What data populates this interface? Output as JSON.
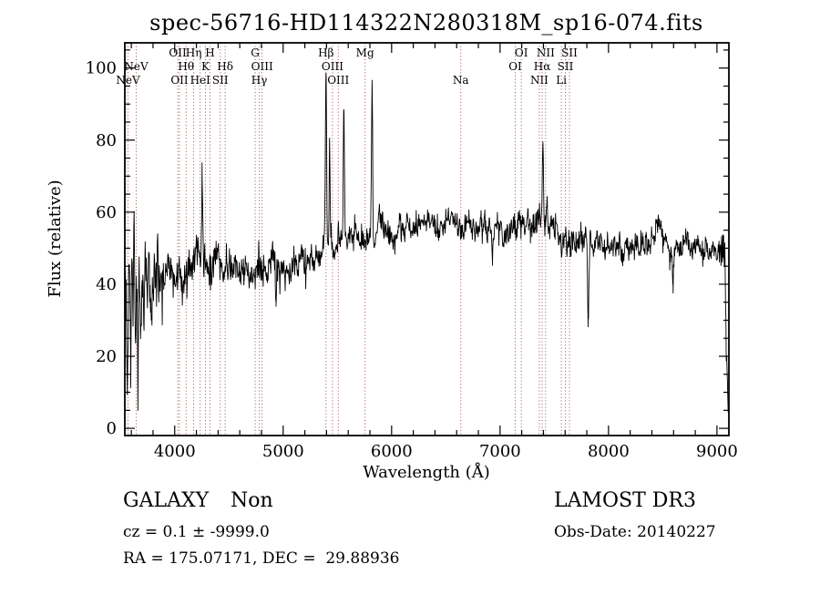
{
  "title": "spec-56716-HD114322N280318M_sp16-074.fits",
  "annotations": {
    "class_label": "GALAXY",
    "subclass_label": "Non",
    "survey": "LAMOST DR3",
    "cz": "cz = 0.1 ± -9999.0",
    "obs_date": "Obs-Date: 20140227",
    "ra_dec": "RA = 175.07171, DEC =  29.88936"
  },
  "chart_data": {
    "type": "line",
    "title": "spec-56716-HD114322N280318M_sp16-074.fits",
    "xlabel": "Wavelength (Å)",
    "ylabel": "Flux (relative)",
    "xlim": [
      3540,
      9110
    ],
    "ylim": [
      -2,
      107
    ],
    "x_ticks": [
      4000,
      5000,
      6000,
      7000,
      8000,
      9000
    ],
    "y_ticks": [
      0,
      20,
      40,
      60,
      80,
      100
    ],
    "x_minor_step": 200,
    "y_minor_step": 5,
    "grid": false,
    "line_color": "#000000",
    "marker_color": "#993939",
    "line_markers": [
      {
        "label": "NeV",
        "row": 3,
        "wavelength": 3570
      },
      {
        "label": "NeV",
        "row": 2,
        "wavelength": 3645
      },
      {
        "label": "OII",
        "row": 1,
        "wavelength": 4028
      },
      {
        "label": "OII",
        "row": 3,
        "wavelength": 4044
      },
      {
        "label": "Hθ",
        "row": 2,
        "wavelength": 4105
      },
      {
        "label": "Hη",
        "row": 1,
        "wavelength": 4175
      },
      {
        "label": "HeI",
        "row": 3,
        "wavelength": 4235
      },
      {
        "label": "K",
        "row": 2,
        "wavelength": 4283
      },
      {
        "label": "H",
        "row": 1,
        "wavelength": 4325
      },
      {
        "label": "SII",
        "row": 3,
        "wavelength": 4420
      },
      {
        "label": "Hδ",
        "row": 2,
        "wavelength": 4465
      },
      {
        "label": "G",
        "row": 1,
        "wavelength": 4742
      },
      {
        "label": "Hγ",
        "row": 3,
        "wavelength": 4780
      },
      {
        "label": "OIII",
        "row": 2,
        "wavelength": 4806
      },
      {
        "label": "Hβ",
        "row": 1,
        "wavelength": 5395
      },
      {
        "label": "OIII",
        "row": 2,
        "wavelength": 5455
      },
      {
        "label": "OIII",
        "row": 3,
        "wavelength": 5508
      },
      {
        "label": "Mg",
        "row": 1,
        "wavelength": 5755
      },
      {
        "label": "Na",
        "row": 3,
        "wavelength": 6638
      },
      {
        "label": "OI",
        "row": 2,
        "wavelength": 7140
      },
      {
        "label": "OI",
        "row": 1,
        "wavelength": 7196
      },
      {
        "label": "NII",
        "row": 3,
        "wavelength": 7362
      },
      {
        "label": "Hα",
        "row": 2,
        "wavelength": 7388
      },
      {
        "label": "NII",
        "row": 1,
        "wavelength": 7420
      },
      {
        "label": "Li",
        "row": 3,
        "wavelength": 7565
      },
      {
        "label": "SII",
        "row": 2,
        "wavelength": 7602
      },
      {
        "label": "SII",
        "row": 1,
        "wavelength": 7640
      }
    ],
    "continuum_points": [
      [
        3540,
        28
      ],
      [
        3552,
        45
      ],
      [
        3560,
        12
      ],
      [
        3572,
        40
      ],
      [
        3582,
        55
      ],
      [
        3594,
        15
      ],
      [
        3605,
        48
      ],
      [
        3615,
        28
      ],
      [
        3625,
        57
      ],
      [
        3636,
        20
      ],
      [
        3648,
        42
      ],
      [
        3660,
        14
      ],
      [
        3672,
        50
      ],
      [
        3686,
        34
      ],
      [
        3700,
        46
      ],
      [
        3715,
        30
      ],
      [
        3730,
        47
      ],
      [
        3748,
        36
      ],
      [
        3765,
        52
      ],
      [
        3780,
        32
      ],
      [
        3798,
        44
      ],
      [
        3818,
        37
      ],
      [
        3838,
        47
      ],
      [
        3858,
        39
      ],
      [
        3878,
        44
      ],
      [
        3905,
        42
      ],
      [
        3950,
        44
      ],
      [
        4000,
        41
      ],
      [
        4050,
        45
      ],
      [
        4100,
        43
      ],
      [
        4150,
        46
      ],
      [
        4200,
        47
      ],
      [
        4250,
        46
      ],
      [
        4300,
        48
      ],
      [
        4350,
        45
      ],
      [
        4400,
        47
      ],
      [
        4450,
        46
      ],
      [
        4500,
        47
      ],
      [
        4550,
        45
      ],
      [
        4600,
        44
      ],
      [
        4650,
        46
      ],
      [
        4700,
        44
      ],
      [
        4750,
        45
      ],
      [
        4800,
        43
      ],
      [
        4850,
        44
      ],
      [
        4900,
        46
      ],
      [
        4950,
        43
      ],
      [
        5000,
        44
      ],
      [
        5050,
        41
      ],
      [
        5100,
        44
      ],
      [
        5150,
        46
      ],
      [
        5200,
        47
      ],
      [
        5250,
        45
      ],
      [
        5300,
        47
      ],
      [
        5350,
        48
      ],
      [
        5400,
        50
      ],
      [
        5450,
        50
      ],
      [
        5500,
        51
      ],
      [
        5550,
        52
      ],
      [
        5600,
        52
      ],
      [
        5650,
        53
      ],
      [
        5700,
        52
      ],
      [
        5750,
        54
      ],
      [
        5800,
        54
      ],
      [
        5850,
        53
      ],
      [
        5900,
        55
      ],
      [
        5950,
        54
      ],
      [
        6000,
        54
      ],
      [
        6100,
        55
      ],
      [
        6200,
        56
      ],
      [
        6300,
        57
      ],
      [
        6400,
        58
      ],
      [
        6500,
        59
      ],
      [
        6550,
        58
      ],
      [
        6600,
        57
      ],
      [
        6700,
        56
      ],
      [
        6800,
        55
      ],
      [
        6900,
        56
      ],
      [
        7000,
        57
      ],
      [
        7100,
        55
      ],
      [
        7200,
        56
      ],
      [
        7300,
        55
      ],
      [
        7400,
        56
      ],
      [
        7500,
        55
      ],
      [
        7600,
        53
      ],
      [
        7700,
        52
      ],
      [
        7800,
        52
      ],
      [
        7900,
        51
      ],
      [
        8000,
        51
      ],
      [
        8100,
        50
      ],
      [
        8200,
        50
      ],
      [
        8300,
        50
      ],
      [
        8380,
        51
      ],
      [
        8450,
        58
      ],
      [
        8520,
        51
      ],
      [
        8600,
        49
      ],
      [
        8700,
        50
      ],
      [
        8800,
        49
      ],
      [
        8900,
        50
      ],
      [
        8980,
        49
      ],
      [
        9040,
        49
      ],
      [
        9070,
        46
      ],
      [
        9090,
        20
      ],
      [
        9105,
        6
      ]
    ],
    "noise_regions": [
      {
        "from": 3540,
        "to": 3905,
        "amp": 6.5
      },
      {
        "from": 3905,
        "to": 4450,
        "amp": 3.4
      },
      {
        "from": 4450,
        "to": 5300,
        "amp": 2.8
      },
      {
        "from": 5300,
        "to": 7600,
        "amp": 2.4
      },
      {
        "from": 7600,
        "to": 9020,
        "amp": 2.2
      },
      {
        "from": 9020,
        "to": 9110,
        "amp": 3.5
      }
    ],
    "emission_features": [
      {
        "wavelength": 4253,
        "peak": 70,
        "sigma": 5
      },
      {
        "wavelength": 5395,
        "peak": 94,
        "sigma": 5
      },
      {
        "wavelength": 5428,
        "peak": 76,
        "sigma": 4
      },
      {
        "wavelength": 5560,
        "peak": 89,
        "sigma": 5
      },
      {
        "wavelength": 5820,
        "peak": 95,
        "sigma": 5
      },
      {
        "wavelength": 7395,
        "peak": 75,
        "sigma": 6
      },
      {
        "wavelength": 7435,
        "peak": 63,
        "sigma": 5
      }
    ],
    "absorption_features": [
      {
        "wavelength": 4935,
        "depth": 10,
        "sigma": 5
      },
      {
        "wavelength": 6930,
        "depth": 9,
        "sigma": 6
      },
      {
        "wavelength": 7812,
        "depth": 24,
        "sigma": 6
      },
      {
        "wavelength": 8595,
        "depth": 9,
        "sigma": 6
      }
    ]
  }
}
